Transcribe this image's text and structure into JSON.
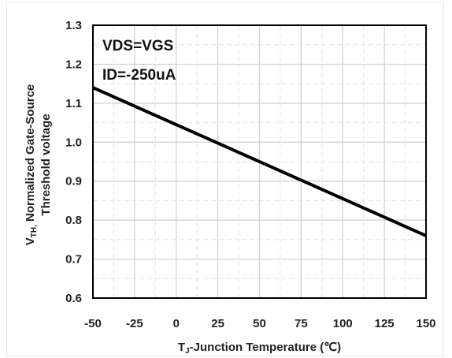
{
  "chart_data": {
    "type": "line",
    "x": [
      -50,
      150
    ],
    "series": [
      {
        "values": [
          1.14,
          0.76
        ]
      }
    ],
    "xlim": [
      -50,
      150
    ],
    "ylim": [
      0.6,
      1.3
    ],
    "xticks": [
      "-50",
      "-25",
      "0",
      "25",
      "50",
      "75",
      "100",
      "125",
      "150"
    ],
    "yticks": [
      "0.6",
      "0.7",
      "0.8",
      "0.9",
      "1.0",
      "1.1",
      "1.2",
      "1.3"
    ],
    "xlabel": "TJ-Junction Temperature (℃)",
    "ylabel_parts": {
      "v": "V",
      "sub": "TH,",
      "rest": " Normalized Gate-Source"
    },
    "ylabel_line2": "Threshold voltage",
    "annotations": [
      "VDS=VGS",
      "ID=-250uA"
    ],
    "grid": true
  },
  "xlabel_parts": {
    "t": "T",
    "sub": "J",
    "rest": "-Junction Temperature (℃)"
  },
  "colors": {
    "line": "#000000",
    "grid_major": "#cfcfcf",
    "grid_minor": "#e4e4e4",
    "axis": "#000000"
  }
}
